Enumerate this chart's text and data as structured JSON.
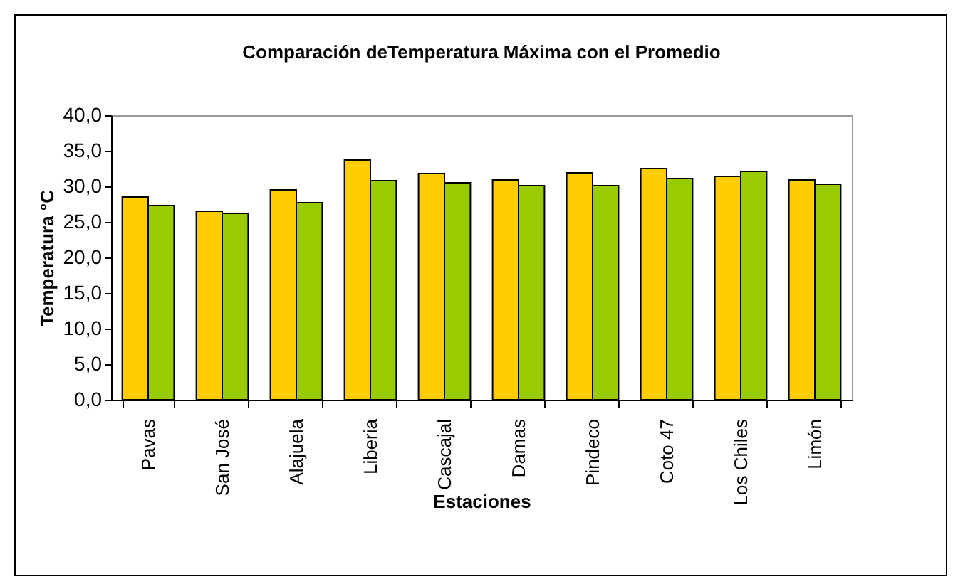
{
  "chart_data": {
    "type": "bar",
    "title": "Comparación deTemperatura Máxima con el Promedio",
    "xlabel": "Estaciones",
    "ylabel": "Temperatura °C",
    "categories": [
      "Pavas",
      "San José",
      "Alajuela",
      "Liberia",
      "Cascajal",
      "Damas",
      "Pindeco",
      "Coto 47",
      "Los Chiles",
      "Limón"
    ],
    "series": [
      {
        "color": "#ffcc00",
        "values": [
          28.5,
          26.5,
          29.5,
          33.7,
          31.8,
          30.9,
          31.9,
          32.5,
          31.4,
          30.9
        ]
      },
      {
        "color": "#99cc00",
        "values": [
          27.3,
          26.2,
          27.7,
          30.8,
          30.5,
          30.1,
          30.1,
          31.1,
          32.1,
          30.3
        ]
      }
    ],
    "ylim": [
      0,
      40
    ],
    "yticks": [
      {
        "value": 0,
        "label": "0,0"
      },
      {
        "value": 5,
        "label": "5,0"
      },
      {
        "value": 10,
        "label": "10,0"
      },
      {
        "value": 15,
        "label": "15,0"
      },
      {
        "value": 20,
        "label": "20,0"
      },
      {
        "value": 25,
        "label": "25,0"
      },
      {
        "value": 30,
        "label": "30,0"
      },
      {
        "value": 35,
        "label": "35,0"
      },
      {
        "value": 40,
        "label": "40,0"
      }
    ],
    "grid": false,
    "legend": false
  }
}
